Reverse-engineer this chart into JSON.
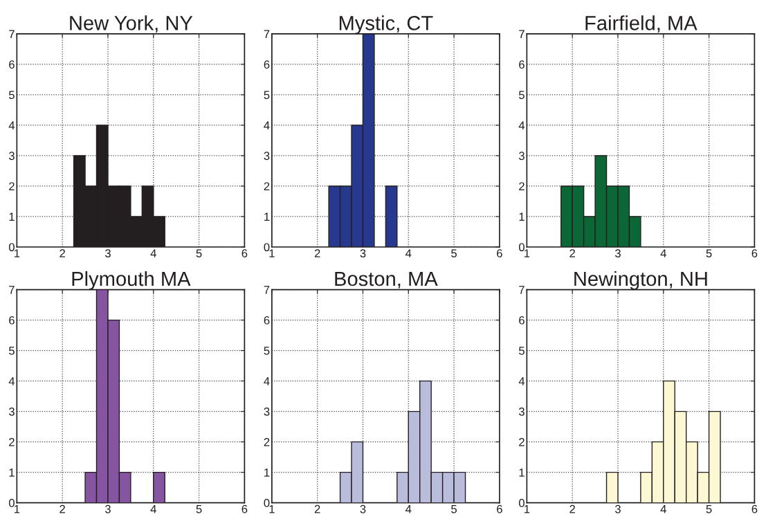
{
  "chart_data": [
    {
      "type": "histogram",
      "title": "New York, NY",
      "bins": [
        2.25,
        2.5,
        2.75,
        3,
        3.25,
        3.5,
        3.75,
        4,
        4.25
      ],
      "values": [
        3,
        2,
        4,
        2,
        2,
        1,
        2,
        1
      ],
      "color": "#231f20",
      "xlim": [
        1,
        6
      ],
      "xticks": [
        1,
        2,
        3,
        4,
        5,
        6
      ],
      "ylim": [
        0,
        7
      ],
      "yticks": [
        0,
        1,
        2,
        3,
        4,
        5,
        6,
        7
      ],
      "grid": true
    },
    {
      "type": "histogram",
      "title": "Mystic, CT",
      "bins": [
        2.25,
        2.5,
        2.75,
        3,
        3.25,
        3.5,
        3.75
      ],
      "values": [
        2,
        2,
        4,
        7,
        0,
        2
      ],
      "color": "#27398f",
      "xlim": [
        1,
        6
      ],
      "xticks": [
        1,
        2,
        3,
        4,
        5,
        6
      ],
      "ylim": [
        0,
        7
      ],
      "yticks": [
        0,
        1,
        2,
        3,
        4,
        5,
        6,
        7
      ],
      "grid": true
    },
    {
      "type": "histogram",
      "title": "Fairfield, MA",
      "bins": [
        1.75,
        2,
        2.25,
        2.5,
        2.75,
        3,
        3.25,
        3.5
      ],
      "values": [
        2,
        2,
        1,
        3,
        2,
        2,
        1
      ],
      "color": "#0b6836",
      "xlim": [
        1,
        6
      ],
      "xticks": [
        1,
        2,
        3,
        4,
        5,
        6
      ],
      "ylim": [
        0,
        7
      ],
      "yticks": [
        0,
        1,
        2,
        3,
        4,
        5,
        6,
        7
      ],
      "grid": true
    },
    {
      "type": "histogram",
      "title": "Plymouth MA",
      "bins": [
        2.5,
        2.75,
        3,
        3.25,
        3.5,
        3.75,
        4,
        4.25
      ],
      "values": [
        1,
        7,
        6,
        1,
        0,
        0,
        1
      ],
      "color": "#8655a2",
      "xlim": [
        1,
        6
      ],
      "xticks": [
        1,
        2,
        3,
        4,
        5,
        6
      ],
      "ylim": [
        0,
        7
      ],
      "yticks": [
        0,
        1,
        2,
        3,
        4,
        5,
        6,
        7
      ],
      "grid": true
    },
    {
      "type": "histogram",
      "title": "Boston, MA",
      "bins": [
        2.5,
        2.75,
        3,
        3.25,
        3.5,
        3.75,
        4,
        4.25,
        4.5,
        4.75,
        5,
        5.25
      ],
      "values": [
        1,
        2,
        0,
        0,
        0,
        1,
        3,
        4,
        1,
        1,
        1
      ],
      "color": "#babcdc",
      "xlim": [
        1,
        6
      ],
      "xticks": [
        1,
        2,
        3,
        4,
        5,
        6
      ],
      "ylim": [
        0,
        7
      ],
      "yticks": [
        0,
        1,
        2,
        3,
        4,
        5,
        6,
        7
      ],
      "grid": true
    },
    {
      "type": "histogram",
      "title": "Newington, NH",
      "bins": [
        2.75,
        3,
        3.25,
        3.5,
        3.75,
        4,
        4.25,
        4.5,
        4.75,
        5,
        5.25
      ],
      "values": [
        1,
        0,
        0,
        1,
        2,
        4,
        3,
        2,
        1,
        3
      ],
      "color": "#fdf8d3",
      "xlim": [
        1,
        6
      ],
      "xticks": [
        1,
        2,
        3,
        4,
        5,
        6
      ],
      "ylim": [
        0,
        7
      ],
      "yticks": [
        0,
        1,
        2,
        3,
        4,
        5,
        6,
        7
      ],
      "grid": true
    }
  ]
}
